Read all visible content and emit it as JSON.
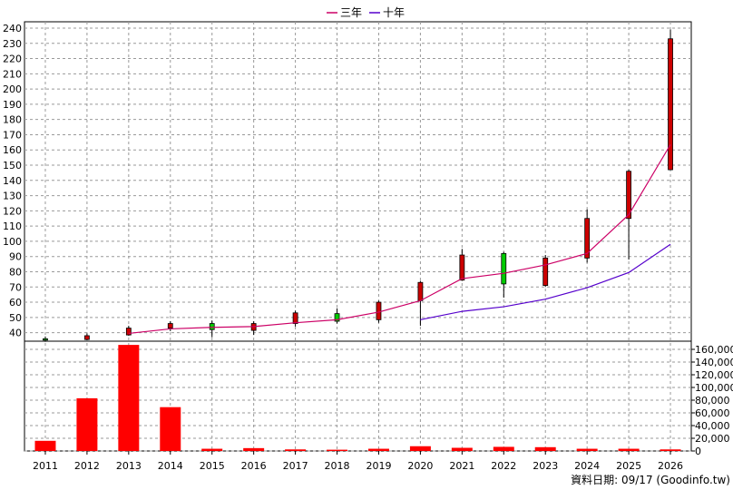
{
  "chart_data": [
    {
      "type": "candlestick",
      "legend": [
        {
          "name": "三年",
          "color": "#cc0066"
        },
        {
          "name": "十年",
          "color": "#5500cc"
        }
      ],
      "legend_placement": "top-center",
      "grid": true,
      "ylim": [
        35,
        240
      ],
      "y_ticks": [
        40,
        50,
        60,
        70,
        80,
        90,
        100,
        110,
        120,
        130,
        140,
        150,
        160,
        170,
        180,
        190,
        200,
        210,
        220,
        230,
        240
      ],
      "categories": [
        "2011",
        "2012",
        "2013",
        "2014",
        "2015",
        "2016",
        "2017",
        "2018",
        "2019",
        "2020",
        "2021",
        "2022",
        "2023",
        "2024",
        "2025",
        "2026"
      ],
      "candles": [
        {
          "x": "2011",
          "open": 36.0,
          "close": 35.5,
          "high": 37.5,
          "low": 34.0
        },
        {
          "x": "2012",
          "open": 35.5,
          "close": 38.0,
          "high": 39.5,
          "low": 35.0
        },
        {
          "x": "2013",
          "open": 38.5,
          "close": 43.0,
          "high": 44.5,
          "low": 38.0
        },
        {
          "x": "2014",
          "open": 43.0,
          "close": 46.0,
          "high": 47.5,
          "low": 41.0
        },
        {
          "x": "2015",
          "open": 46.0,
          "close": 42.0,
          "high": 48.0,
          "low": 37.0
        },
        {
          "x": "2016",
          "open": 41.5,
          "close": 46.0,
          "high": 47.5,
          "low": 38.5
        },
        {
          "x": "2017",
          "open": 46.0,
          "close": 53.0,
          "high": 54.5,
          "low": 44.0
        },
        {
          "x": "2018",
          "open": 52.5,
          "close": 47.5,
          "high": 56.0,
          "low": 46.0
        },
        {
          "x": "2019",
          "open": 48.5,
          "close": 60.0,
          "high": 61.0,
          "low": 46.5
        },
        {
          "x": "2020",
          "open": 61.0,
          "close": 73.0,
          "high": 74.0,
          "low": 44.5
        },
        {
          "x": "2021",
          "open": 74.5,
          "close": 91.0,
          "high": 95.0,
          "low": 74.0
        },
        {
          "x": "2022",
          "open": 92.0,
          "close": 72.0,
          "high": 93.0,
          "low": 63.0
        },
        {
          "x": "2023",
          "open": 71.0,
          "close": 89.0,
          "high": 91.0,
          "low": 70.0
        },
        {
          "x": "2024",
          "open": 89.0,
          "close": 115.0,
          "high": 121.0,
          "low": 86.0
        },
        {
          "x": "2025",
          "open": 115.0,
          "close": 146.0,
          "high": 147.0,
          "low": 88.0
        },
        {
          "x": "2026",
          "open": 147.0,
          "close": 233.0,
          "high": 239.0,
          "low": 147.0
        }
      ],
      "series": [
        {
          "name": "三年",
          "x": [
            "2013",
            "2014",
            "2015",
            "2016",
            "2017",
            "2018",
            "2019",
            "2020",
            "2021",
            "2022",
            "2023",
            "2024",
            "2025",
            "2026"
          ],
          "values": [
            39.5,
            42.5,
            43.5,
            44.0,
            46.5,
            48.5,
            53.5,
            61.0,
            75.5,
            79.0,
            84.5,
            92.0,
            117.5,
            163.5
          ]
        },
        {
          "name": "十年",
          "x": [
            "2020",
            "2021",
            "2022",
            "2023",
            "2024",
            "2025",
            "2026"
          ],
          "values": [
            48.5,
            54.0,
            57.0,
            62.0,
            69.5,
            79.5,
            98.0
          ]
        }
      ],
      "colors": {
        "up": "#cc0000",
        "down": "#00cc00",
        "outline": "#000000"
      }
    },
    {
      "type": "bar",
      "categories": [
        "2011",
        "2012",
        "2013",
        "2014",
        "2015",
        "2016",
        "2017",
        "2018",
        "2019",
        "2020",
        "2021",
        "2022",
        "2023",
        "2024",
        "2025",
        "2026"
      ],
      "values": [
        16000,
        83000,
        167000,
        69000,
        3500,
        4500,
        2500,
        2000,
        3500,
        7500,
        5000,
        6500,
        6000,
        3500,
        3500,
        2500
      ],
      "ylim": [
        0,
        170000
      ],
      "y_ticks": [
        "0",
        "20,000",
        "40,000",
        "60,000",
        "80,000",
        "100,000",
        "120,000",
        "140,000",
        "160,000"
      ],
      "color": "#ff0000"
    }
  ],
  "footer": "資料日期: 09/17 (Goodinfo.tw)"
}
